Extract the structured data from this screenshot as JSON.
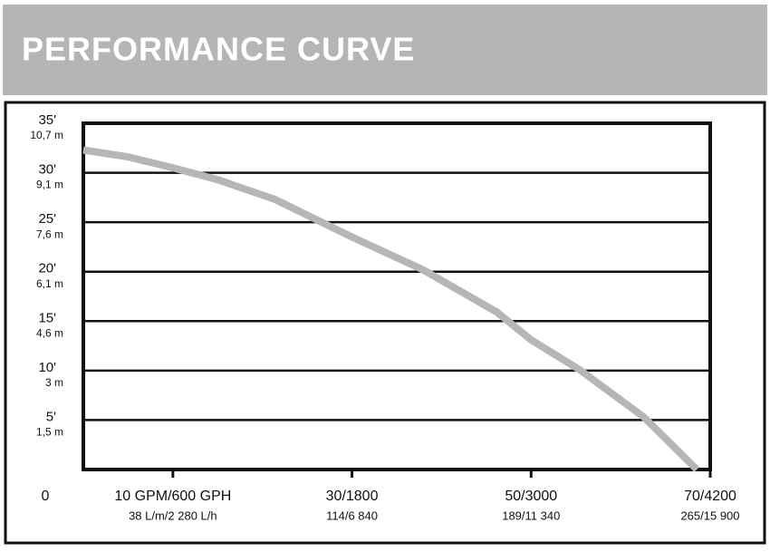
{
  "chart_data": {
    "type": "line",
    "title": "PERFORMANCE CURVE",
    "color": "#b4b7ba",
    "x": [
      0,
      5,
      10,
      15,
      21.4,
      30,
      37.9,
      46.2,
      50,
      55.4,
      62.6,
      68.5
    ],
    "values": [
      32.3,
      31.6,
      30.5,
      29.3,
      27.3,
      23.5,
      20.2,
      15.9,
      13.1,
      10.1,
      5.3,
      0
    ],
    "xlim": [
      0,
      70
    ],
    "ylim": [
      0,
      35
    ],
    "xticks": [
      0,
      {
        "value": 10,
        "label": "10 GPM/600 GPH"
      },
      {
        "value": 30,
        "label": "30/1800"
      },
      {
        "value": 50,
        "label": "50/3000"
      },
      {
        "value": 70,
        "label": "70/4200"
      }
    ],
    "xtick_sublabels": [
      null,
      "38 L/m/2 280 L/h",
      "114/6 840",
      "189/11 340",
      "265/15 900"
    ],
    "yticks": [
      {
        "value": 5,
        "label": "5'"
      },
      {
        "value": 10,
        "label": "10'"
      },
      {
        "value": 15,
        "label": "15'"
      },
      {
        "value": 20,
        "label": "20'"
      },
      {
        "value": 25,
        "label": "25'"
      },
      {
        "value": 30,
        "label": "30'"
      },
      {
        "value": 35,
        "label": "35'"
      }
    ],
    "ytick_sublabels": [
      "1,5 m",
      "3 m",
      "4,6 m",
      "6,1 m",
      "7,6 m",
      "9,1 m",
      "10,7 m"
    ],
    "grid": true
  }
}
